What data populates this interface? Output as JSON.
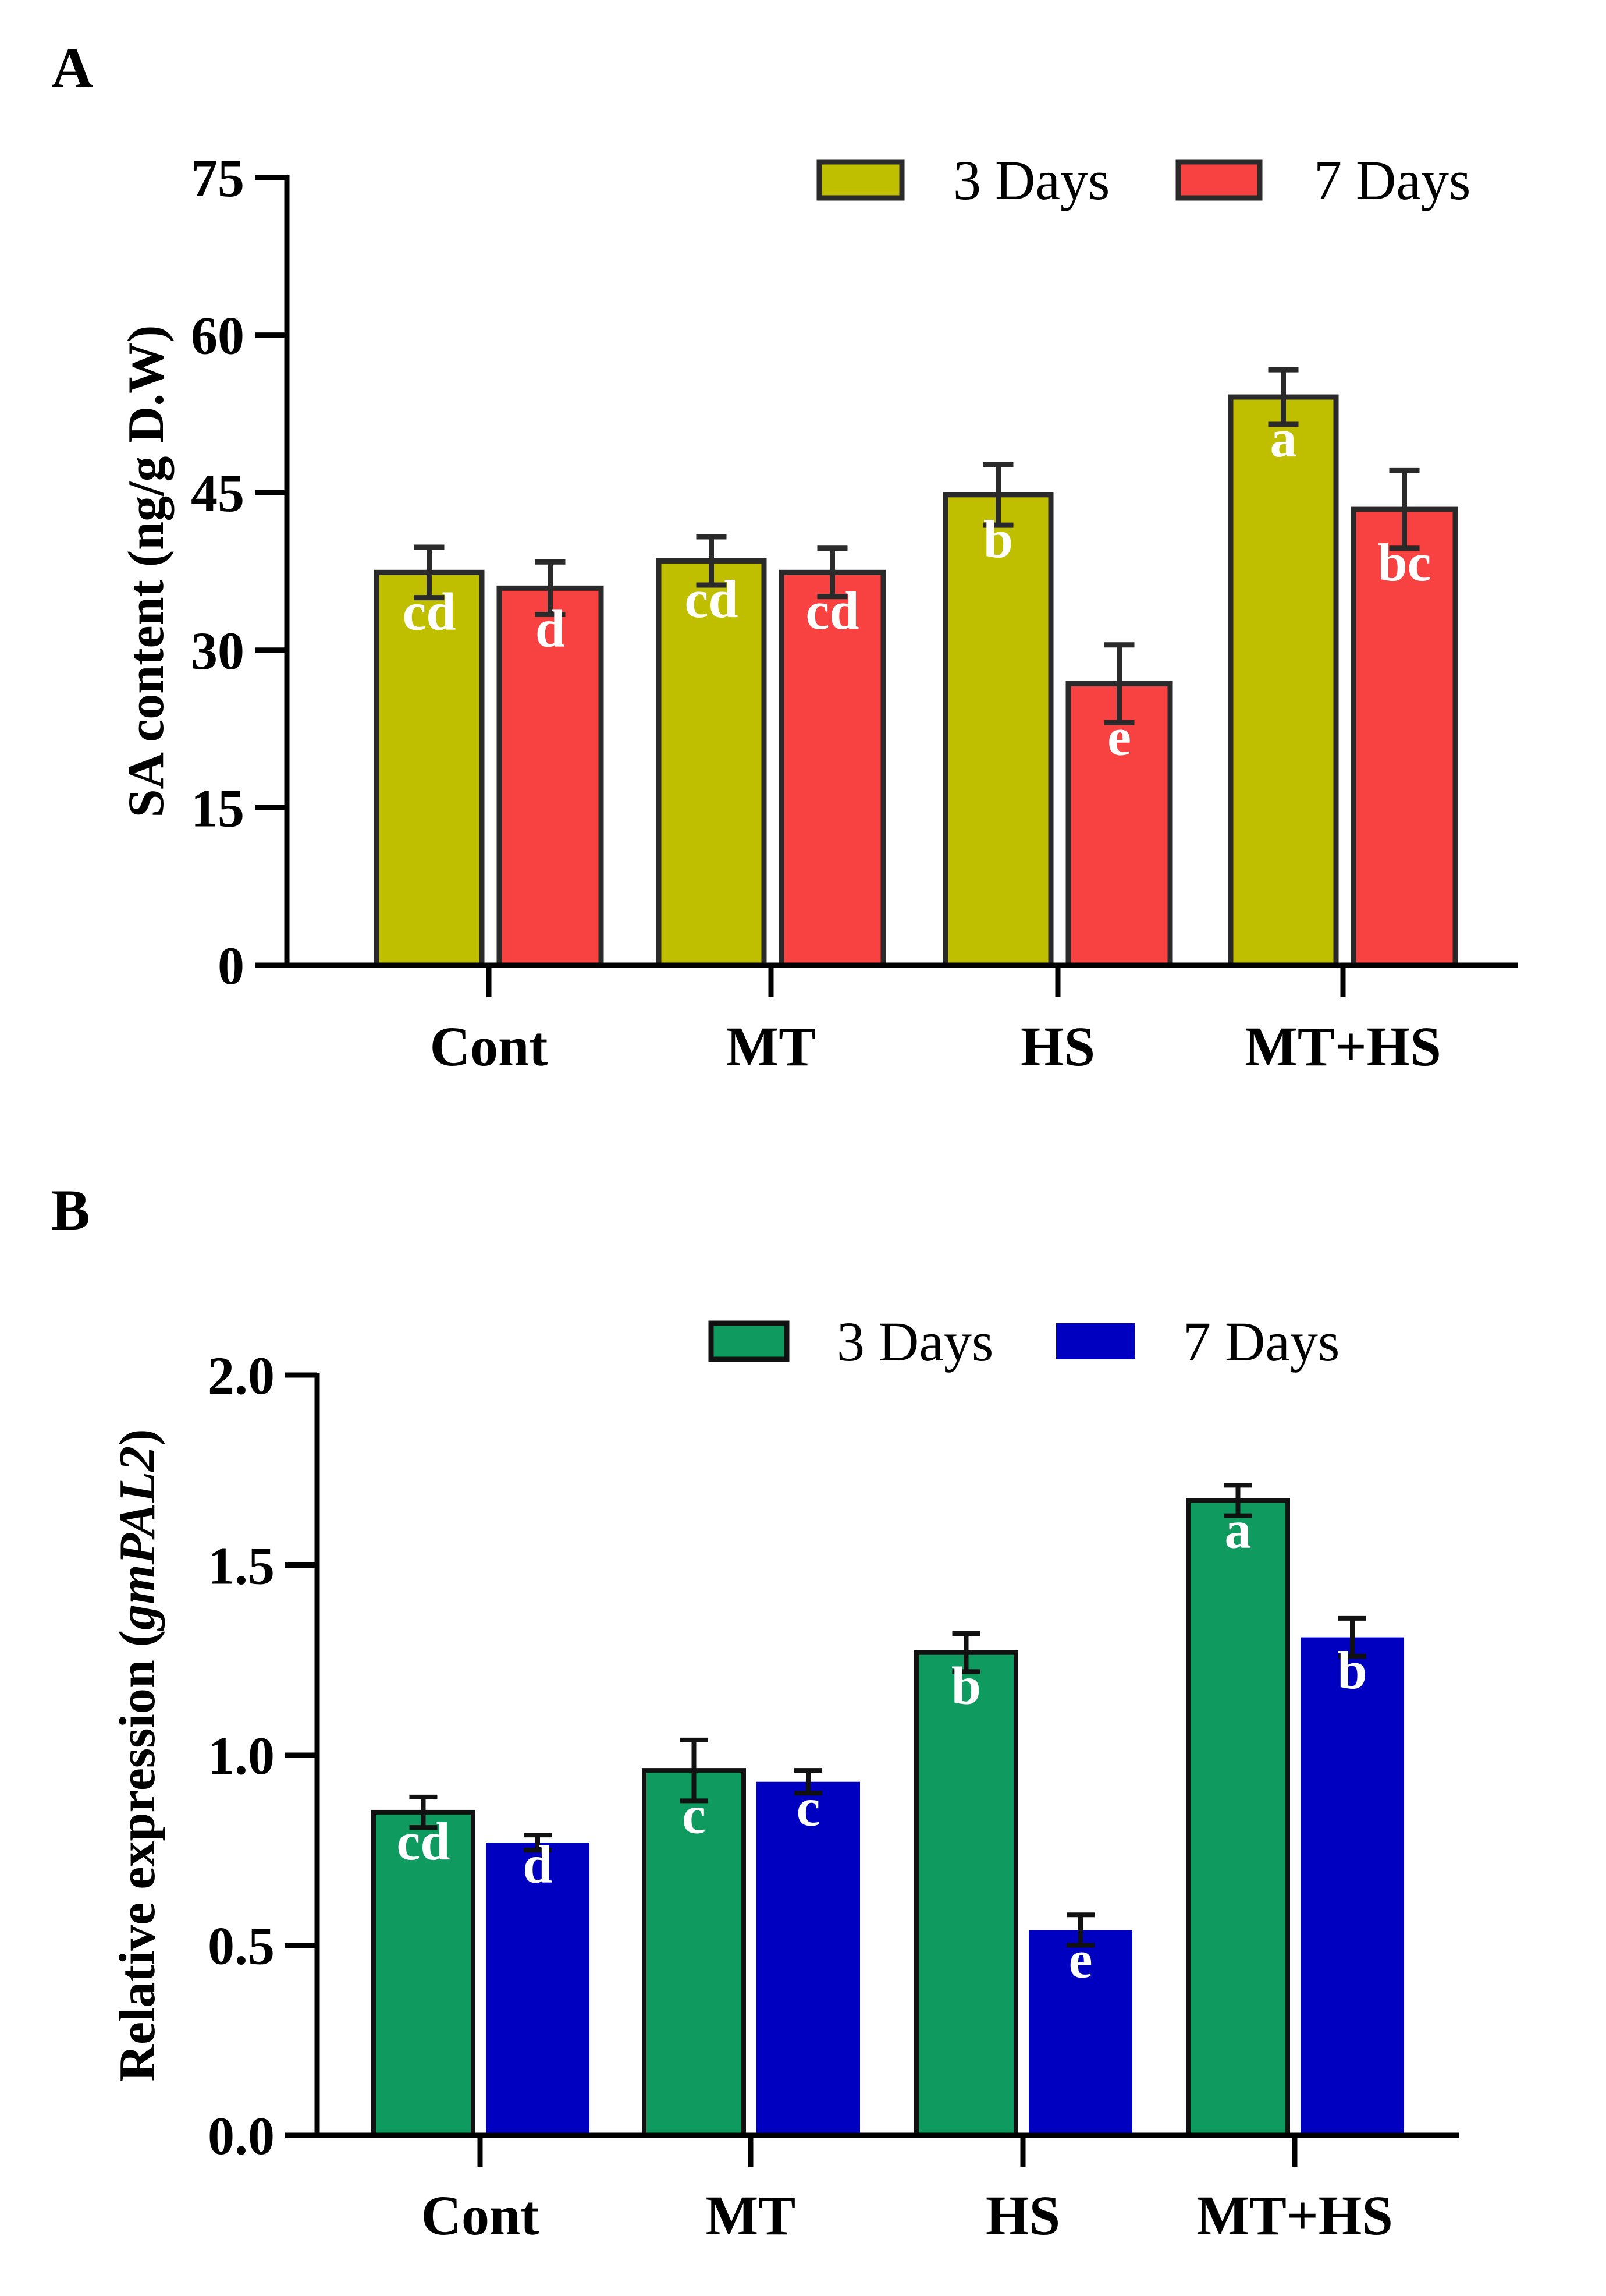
{
  "chart_data": [
    {
      "panel_label": "A",
      "type": "bar",
      "title": "",
      "xlabel": "",
      "ylabel": "SA content (ng/g D.W)",
      "ylim": [
        0,
        75
      ],
      "yticks": [
        "0",
        "15",
        "30",
        "45",
        "60",
        "75"
      ],
      "ytick_values": [
        0,
        15,
        30,
        45,
        60,
        75
      ],
      "categories": [
        "Cont",
        "MT",
        "HS",
        "MT+HS"
      ],
      "legend_placement": "top-right",
      "series": [
        {
          "name": "3 Days",
          "color": "#bfbf00",
          "outline": "#2a2a2a",
          "values": [
            37.4,
            38.5,
            44.8,
            54.1
          ],
          "errors": [
            2.4,
            2.3,
            2.9,
            2.6
          ],
          "letters": [
            "cd",
            "cd",
            "b",
            "a"
          ]
        },
        {
          "name": "7 Days",
          "color": "#f84141",
          "outline": "#2a2a2a",
          "values": [
            35.9,
            37.4,
            26.8,
            43.4
          ],
          "errors": [
            2.5,
            2.3,
            3.7,
            3.7
          ],
          "letters": [
            "d",
            "cd",
            "e",
            "bc"
          ]
        }
      ]
    },
    {
      "panel_label": "B",
      "type": "bar",
      "title": "",
      "xlabel": "",
      "ylabel_prefix": "Relative expression (",
      "ylabel_gene": "gmPAL2",
      "ylabel_suffix": ")",
      "ylim": [
        0,
        2.0
      ],
      "yticks": [
        "0.0",
        "0.5",
        "1.0",
        "1.5",
        "2.0"
      ],
      "ytick_values": [
        0,
        0.5,
        1.0,
        1.5,
        2.0
      ],
      "categories": [
        "Cont",
        "MT",
        "HS",
        "MT+HS"
      ],
      "legend_placement": "top-right",
      "series": [
        {
          "name": "3 Days",
          "color": "#0f9a5f",
          "outline": "#111111",
          "values": [
            0.85,
            0.96,
            1.27,
            1.67
          ],
          "errors": [
            0.04,
            0.08,
            0.05,
            0.04
          ],
          "letters": [
            "cd",
            "c",
            "b",
            "a"
          ]
        },
        {
          "name": "7 Days",
          "color": "#0000c0",
          "outline": "none",
          "values": [
            0.77,
            0.93,
            0.54,
            1.31
          ],
          "errors": [
            0.02,
            0.03,
            0.04,
            0.05
          ],
          "letters": [
            "d",
            "c",
            "e",
            "b"
          ]
        }
      ]
    }
  ]
}
